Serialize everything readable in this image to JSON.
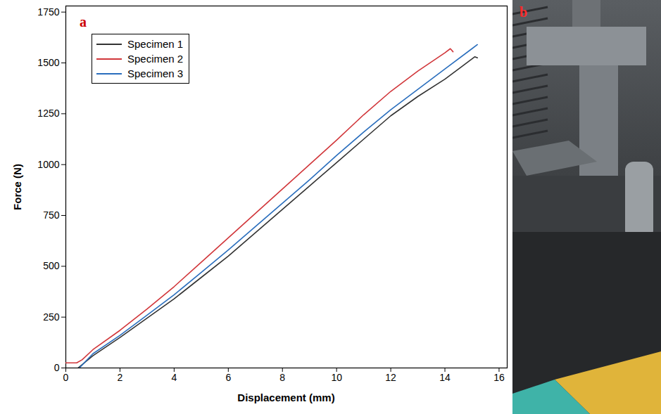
{
  "chart_data": {
    "type": "line",
    "panel_label": "a",
    "xlabel": "Displacement (mm)",
    "ylabel": "Force (N)",
    "xlim": [
      0,
      16.3
    ],
    "xticks": [
      0,
      2,
      4,
      6,
      8,
      10,
      12,
      14,
      16
    ],
    "ylim": [
      0,
      1780
    ],
    "yticks": [
      0,
      250,
      500,
      750,
      1000,
      1250,
      1500,
      1750
    ],
    "legend": "top-left",
    "series": [
      {
        "name": "Specimen 1",
        "color": "#333333",
        "x": [
          0.45,
          1,
          2,
          3,
          4,
          5,
          6,
          7,
          8,
          9,
          10,
          11,
          12,
          13,
          14,
          14.6,
          15.1,
          15.2
        ],
        "values": [
          0,
          60,
          150,
          245,
          340,
          445,
          550,
          665,
          780,
          895,
          1010,
          1125,
          1240,
          1335,
          1420,
          1480,
          1530,
          1525
        ]
      },
      {
        "name": "Specimen 2",
        "color": "#d1363a",
        "x": [
          0,
          0.4,
          0.6,
          1,
          2,
          3,
          4,
          5,
          6,
          7,
          8,
          9,
          10,
          11,
          12,
          13,
          14,
          14.2,
          14.3
        ],
        "values": [
          25,
          25,
          40,
          90,
          185,
          290,
          400,
          520,
          640,
          760,
          880,
          1000,
          1120,
          1245,
          1360,
          1460,
          1550,
          1570,
          1555
        ]
      },
      {
        "name": "Specimen 3",
        "color": "#2a6ebd",
        "x": [
          0.5,
          1,
          2,
          3,
          4,
          5,
          6,
          7,
          8,
          9,
          10,
          11,
          12,
          13,
          14,
          15,
          15.2
        ],
        "values": [
          0,
          70,
          160,
          260,
          360,
          470,
          580,
          695,
          810,
          925,
          1045,
          1160,
          1270,
          1370,
          1470,
          1570,
          1590
        ]
      }
    ]
  },
  "photo_panel": {
    "label": "b"
  }
}
